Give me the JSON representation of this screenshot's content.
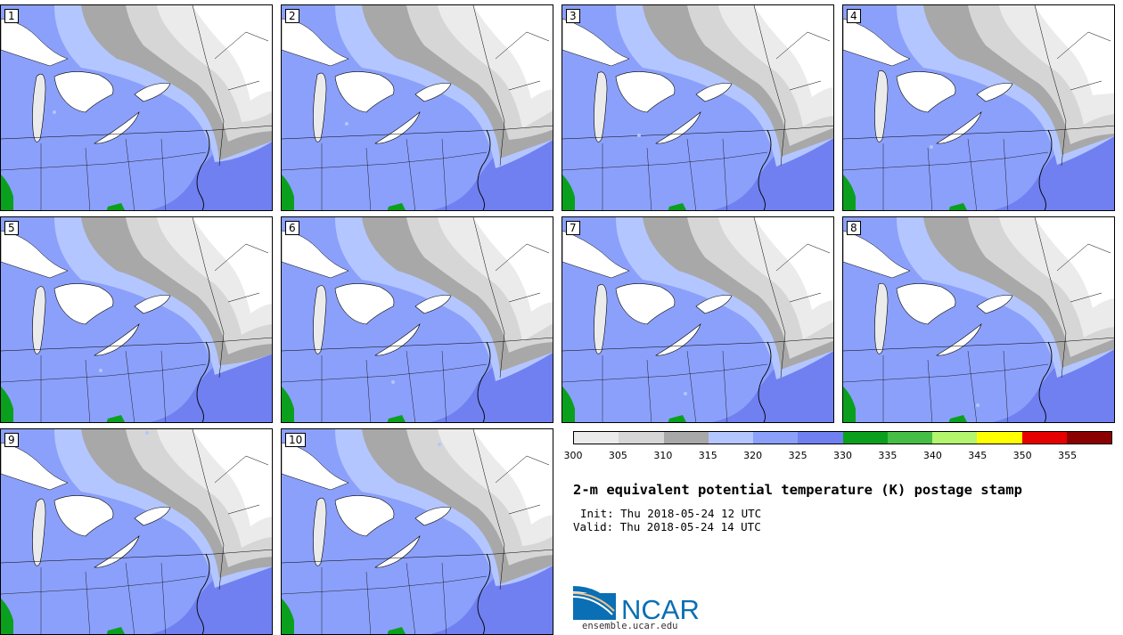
{
  "panels": [
    {
      "label": "1"
    },
    {
      "label": "2"
    },
    {
      "label": "3"
    },
    {
      "label": "4"
    },
    {
      "label": "5"
    },
    {
      "label": "6"
    },
    {
      "label": "7"
    },
    {
      "label": "8"
    },
    {
      "label": "9"
    },
    {
      "label": "10"
    }
  ],
  "legend": {
    "ticks": [
      "300",
      "305",
      "310",
      "315",
      "320",
      "325",
      "330",
      "335",
      "340",
      "345",
      "350",
      "355"
    ],
    "colors": [
      "#ebebeb",
      "#d6d6d6",
      "#a8a8a8",
      "#b4c6ff",
      "#8ba0fa",
      "#7080f0",
      "#0aa01e",
      "#46be46",
      "#b4f56e",
      "#ffff00",
      "#e60000",
      "#8b0000"
    ]
  },
  "title": "2-m equivalent potential temperature (K) postage stamp",
  "init": "Init: Thu 2018-05-24 12 UTC",
  "valid": "Valid: Thu 2018-05-24 14 UTC",
  "logo": {
    "text": "NCAR",
    "url": "ensemble.ucar.edu"
  }
}
